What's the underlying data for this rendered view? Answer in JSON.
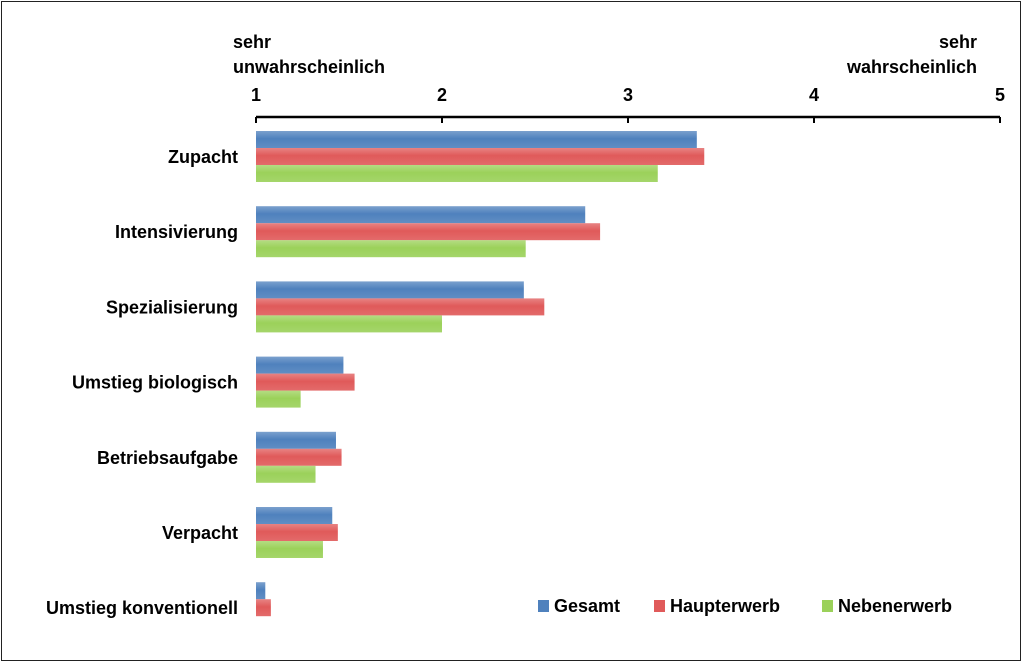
{
  "chart_data": {
    "type": "bar",
    "orientation": "horizontal",
    "axis_position": "top",
    "xlim": [
      1,
      5
    ],
    "xticks": [
      1,
      2,
      3,
      4,
      5
    ],
    "axis_end_labels": {
      "left": [
        "sehr",
        "unwahrscheinlich"
      ],
      "right": [
        "sehr",
        "wahrscheinlich"
      ]
    },
    "categories": [
      "Zupacht",
      "Intensivierung",
      "Spezialisierung",
      "Umstieg biologisch",
      "Betriebsaufgabe",
      "Verpacht",
      "Umstieg konventionell"
    ],
    "series": [
      {
        "name": "Gesamt",
        "color": "#4f81bd",
        "values": [
          3.37,
          2.77,
          2.44,
          1.47,
          1.43,
          1.41,
          1.05
        ]
      },
      {
        "name": "Haupterwerb",
        "color": "#e05a5a",
        "values": [
          3.41,
          2.85,
          2.55,
          1.53,
          1.46,
          1.44,
          1.08
        ]
      },
      {
        "name": "Nebenerwerb",
        "color": "#9bd15a",
        "values": [
          3.16,
          2.45,
          2.0,
          1.24,
          1.32,
          1.36,
          null
        ]
      }
    ],
    "legend_position": "bottom-right",
    "grid": false
  }
}
